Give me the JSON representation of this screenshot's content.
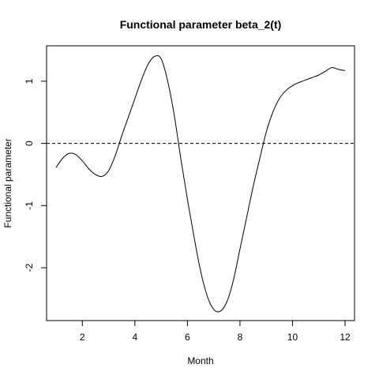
{
  "chart_data": {
    "type": "line",
    "title": "Functional parameter beta_2(t)",
    "xlabel": "Month",
    "ylabel": "Functional parameter",
    "xlim": [
      0.64,
      12.36
    ],
    "ylim": [
      -2.85,
      1.57
    ],
    "x_ticks": [
      2,
      4,
      6,
      8,
      10,
      12
    ],
    "x_tick_labels": [
      "2",
      "4",
      "6",
      "8",
      "10",
      "12"
    ],
    "y_ticks": [
      -2,
      -1,
      0,
      1
    ],
    "y_tick_labels": [
      "-2",
      "-1",
      "0",
      "1"
    ],
    "reference_line": {
      "y": 0,
      "style": "dashed"
    },
    "grid": false,
    "series": [
      {
        "x": [
          1.0,
          1.25,
          1.5,
          1.75,
          2.0,
          2.25,
          2.5,
          2.75,
          3.0,
          3.25,
          3.5,
          3.75,
          4.0,
          4.25,
          4.5,
          4.75,
          5.0,
          5.25,
          5.5,
          5.75,
          6.0,
          6.25,
          6.5,
          6.75,
          7.0,
          7.25,
          7.5,
          7.75,
          8.0,
          8.25,
          8.5,
          8.75,
          9.0,
          9.25,
          9.5,
          9.75,
          10.0,
          10.25,
          10.5,
          10.75,
          11.0,
          11.25,
          11.5,
          11.75,
          12.0
        ],
        "y": [
          -0.39,
          -0.24,
          -0.16,
          -0.18,
          -0.28,
          -0.41,
          -0.5,
          -0.53,
          -0.44,
          -0.2,
          0.12,
          0.42,
          0.72,
          1.02,
          1.27,
          1.4,
          1.36,
          1.0,
          0.45,
          -0.25,
          -0.9,
          -1.5,
          -2.05,
          -2.45,
          -2.67,
          -2.7,
          -2.55,
          -2.2,
          -1.7,
          -1.2,
          -0.7,
          -0.25,
          0.18,
          0.5,
          0.72,
          0.85,
          0.93,
          0.98,
          1.02,
          1.06,
          1.1,
          1.16,
          1.22,
          1.19,
          1.17
        ]
      }
    ]
  }
}
